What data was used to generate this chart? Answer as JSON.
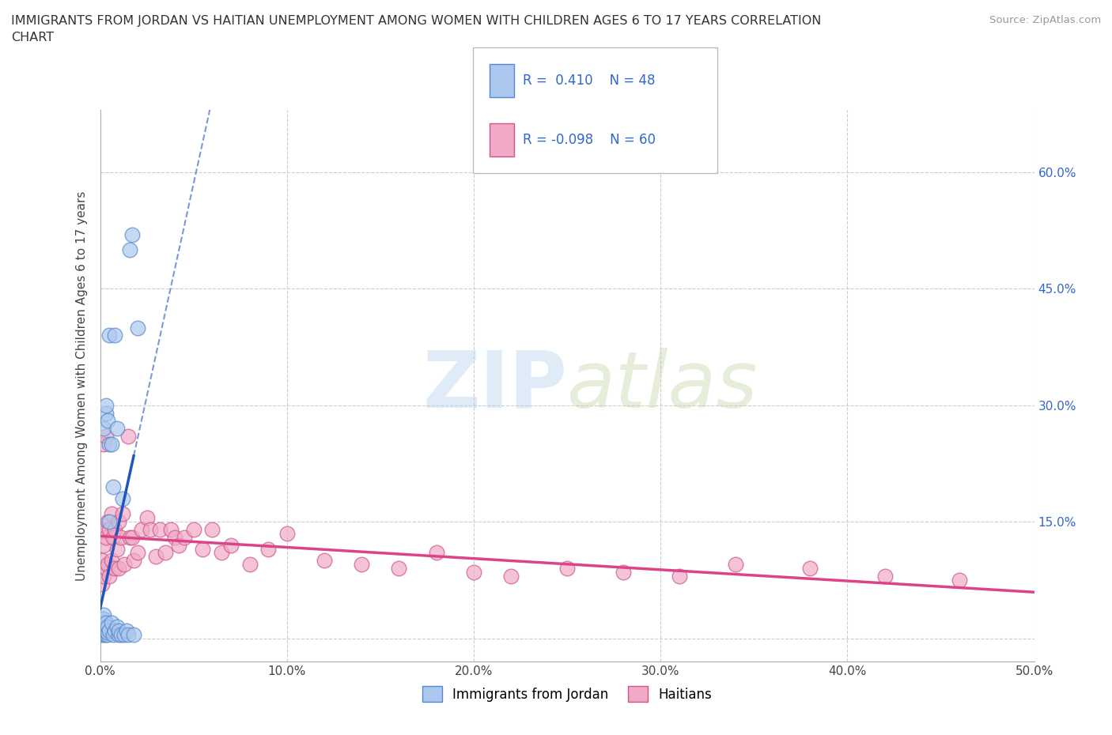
{
  "title": "IMMIGRANTS FROM JORDAN VS HAITIAN UNEMPLOYMENT AMONG WOMEN WITH CHILDREN AGES 6 TO 17 YEARS CORRELATION\nCHART",
  "source": "Source: ZipAtlas.com",
  "ylabel": "Unemployment Among Women with Children Ages 6 to 17 years",
  "xlim": [
    0.0,
    0.5
  ],
  "ylim": [
    -0.03,
    0.68
  ],
  "xticks": [
    0.0,
    0.1,
    0.2,
    0.3,
    0.4,
    0.5
  ],
  "xticklabels": [
    "0.0%",
    "10.0%",
    "20.0%",
    "30.0%",
    "40.0%",
    "50.0%"
  ],
  "yticks": [
    0.0,
    0.15,
    0.3,
    0.45,
    0.6
  ],
  "yticklabels": [
    "",
    "15.0%",
    "30.0%",
    "45.0%",
    "60.0%"
  ],
  "jordan_color": "#adc8ee",
  "jordan_edge": "#5588cc",
  "haitian_color": "#f0aac8",
  "haitian_edge": "#cc5588",
  "trend_jordan_color": "#2255bb",
  "trend_haitian_color": "#dd4488",
  "R_jordan": 0.41,
  "N_jordan": 48,
  "R_haitian": -0.098,
  "N_haitian": 60,
  "watermark_zip": "ZIP",
  "watermark_atlas": "atlas",
  "jordan_x": [
    0.001,
    0.001,
    0.001,
    0.001,
    0.001,
    0.001,
    0.001,
    0.002,
    0.002,
    0.002,
    0.002,
    0.002,
    0.002,
    0.002,
    0.002,
    0.003,
    0.003,
    0.003,
    0.003,
    0.003,
    0.003,
    0.004,
    0.004,
    0.004,
    0.004,
    0.005,
    0.005,
    0.005,
    0.005,
    0.006,
    0.006,
    0.007,
    0.007,
    0.008,
    0.008,
    0.009,
    0.009,
    0.01,
    0.01,
    0.011,
    0.012,
    0.013,
    0.014,
    0.015,
    0.016,
    0.017,
    0.018,
    0.02
  ],
  "jordan_y": [
    0.005,
    0.008,
    0.01,
    0.012,
    0.015,
    0.02,
    0.025,
    0.005,
    0.008,
    0.01,
    0.012,
    0.02,
    0.025,
    0.03,
    0.27,
    0.005,
    0.01,
    0.015,
    0.02,
    0.29,
    0.3,
    0.005,
    0.008,
    0.015,
    0.28,
    0.01,
    0.15,
    0.25,
    0.39,
    0.02,
    0.25,
    0.005,
    0.195,
    0.01,
    0.39,
    0.015,
    0.27,
    0.005,
    0.01,
    0.005,
    0.18,
    0.005,
    0.01,
    0.005,
    0.5,
    0.52,
    0.005,
    0.4
  ],
  "haitian_x": [
    0.001,
    0.001,
    0.001,
    0.002,
    0.002,
    0.002,
    0.003,
    0.003,
    0.003,
    0.004,
    0.004,
    0.005,
    0.005,
    0.006,
    0.006,
    0.007,
    0.008,
    0.008,
    0.009,
    0.01,
    0.01,
    0.011,
    0.012,
    0.013,
    0.015,
    0.016,
    0.017,
    0.018,
    0.02,
    0.022,
    0.025,
    0.027,
    0.03,
    0.032,
    0.035,
    0.038,
    0.04,
    0.042,
    0.045,
    0.05,
    0.055,
    0.06,
    0.065,
    0.07,
    0.08,
    0.09,
    0.1,
    0.12,
    0.14,
    0.16,
    0.18,
    0.2,
    0.22,
    0.25,
    0.28,
    0.31,
    0.34,
    0.38,
    0.42,
    0.46
  ],
  "haitian_y": [
    0.07,
    0.1,
    0.14,
    0.08,
    0.12,
    0.25,
    0.09,
    0.13,
    0.26,
    0.095,
    0.15,
    0.08,
    0.14,
    0.1,
    0.16,
    0.13,
    0.09,
    0.14,
    0.115,
    0.09,
    0.15,
    0.13,
    0.16,
    0.095,
    0.26,
    0.13,
    0.13,
    0.1,
    0.11,
    0.14,
    0.155,
    0.14,
    0.105,
    0.14,
    0.11,
    0.14,
    0.13,
    0.12,
    0.13,
    0.14,
    0.115,
    0.14,
    0.11,
    0.12,
    0.095,
    0.115,
    0.135,
    0.1,
    0.095,
    0.09,
    0.11,
    0.085,
    0.08,
    0.09,
    0.085,
    0.08,
    0.095,
    0.09,
    0.08,
    0.075
  ]
}
